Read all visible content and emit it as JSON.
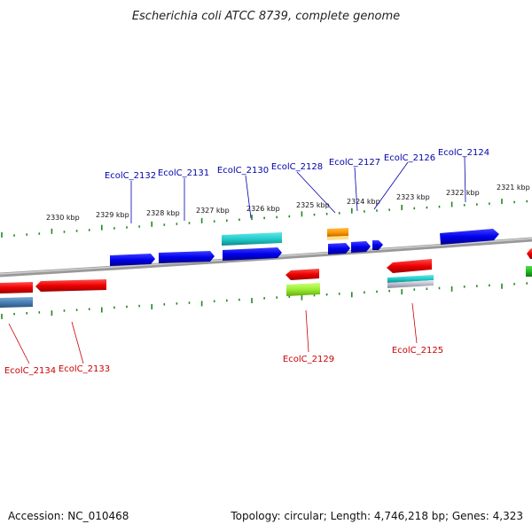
{
  "title": "Escherichia coli ATCC 8739, complete genome",
  "footer": {
    "accession": "Accession: NC_010468",
    "summary": "Topology: circular; Length: 4,746,218 bp; Genes: 4,323"
  },
  "scale": {
    "ticks": [
      {
        "label": "2330 kbp"
      },
      {
        "label": "2329 kbp"
      },
      {
        "label": "2328 kbp"
      },
      {
        "label": "2327 kbp"
      },
      {
        "label": "2326 kbp"
      },
      {
        "label": "2325 kbp"
      },
      {
        "label": "2324 kbp"
      },
      {
        "label": "2323 kbp"
      },
      {
        "label": "2322 kbp"
      },
      {
        "label": "2321 kbp"
      }
    ]
  },
  "genes_top": [
    {
      "label": "EcolC_2132"
    },
    {
      "label": "EcolC_2131"
    },
    {
      "label": "EcolC_2130"
    },
    {
      "label": "EcolC_2128"
    },
    {
      "label": "EcolC_2127"
    },
    {
      "label": "EcolC_2126"
    },
    {
      "label": "EcolC_2124"
    }
  ],
  "genes_bottom": [
    {
      "label": "EcolC_2134"
    },
    {
      "label": "EcolC_2133"
    },
    {
      "label": "EcolC_2129"
    },
    {
      "label": "EcolC_2125"
    }
  ],
  "colors": {
    "forward_gene": "#0000ee",
    "reverse_gene": "#ee0000",
    "cyan_feature": "#22cccc",
    "orange_feature": "#ff9900",
    "lime_feature": "#99ee33",
    "steel_feature": "#4a7fb5",
    "green_feature": "#22bb22",
    "tick_color": "#228822",
    "backbone": "#888888",
    "top_label": "#0000aa",
    "bottom_label": "#cc0000"
  }
}
